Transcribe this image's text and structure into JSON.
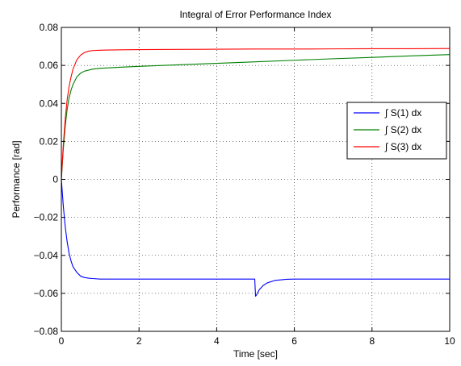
{
  "chart_data": {
    "type": "line",
    "title": "Integral of Error Performance Index",
    "xlabel": "Time [sec]",
    "ylabel": "Performance [rad]",
    "xlim": [
      0,
      10
    ],
    "ylim": [
      -0.08,
      0.08
    ],
    "x_ticks": [
      0,
      2,
      4,
      6,
      8,
      10
    ],
    "y_ticks": [
      -0.08,
      -0.06,
      -0.04,
      -0.02,
      0,
      0.02,
      0.04,
      0.06,
      0.08
    ],
    "x_tick_labels": [
      "0",
      "2",
      "4",
      "6",
      "8",
      "10"
    ],
    "y_tick_labels": [
      "−0.08",
      "−0.06",
      "−0.04",
      "−0.02",
      "0",
      "0.02",
      "0.04",
      "0.06",
      "0.08"
    ],
    "grid": true,
    "legend_position": "right",
    "series": [
      {
        "name": "∫ S(1) dx",
        "color": "#0000ff",
        "x": [
          0,
          0.05,
          0.1,
          0.15,
          0.2,
          0.25,
          0.3,
          0.4,
          0.5,
          0.6,
          0.7,
          0.8,
          1.0,
          1.2,
          1.5,
          2.0,
          3.0,
          4.0,
          4.98,
          5.0,
          5.02,
          5.1,
          5.2,
          5.3,
          5.5,
          5.8,
          6.0,
          7.0,
          8.0,
          9.0,
          10.0
        ],
        "y": [
          0,
          -0.014,
          -0.025,
          -0.033,
          -0.039,
          -0.043,
          -0.046,
          -0.049,
          -0.051,
          -0.0517,
          -0.052,
          -0.0522,
          -0.0525,
          -0.0525,
          -0.0525,
          -0.0525,
          -0.0525,
          -0.0525,
          -0.0525,
          -0.0615,
          -0.061,
          -0.058,
          -0.0558,
          -0.0545,
          -0.0532,
          -0.0526,
          -0.0525,
          -0.0525,
          -0.0525,
          -0.0525,
          -0.0525
        ]
      },
      {
        "name": "∫ S(2) dx",
        "color": "#008000",
        "x": [
          0,
          0.05,
          0.1,
          0.15,
          0.2,
          0.25,
          0.3,
          0.4,
          0.5,
          0.6,
          0.8,
          1.0,
          1.5,
          2.0,
          3.0,
          4.0,
          5.0,
          6.0,
          7.0,
          8.0,
          9.0,
          10.0
        ],
        "y": [
          0,
          0.016,
          0.028,
          0.037,
          0.043,
          0.047,
          0.05,
          0.054,
          0.056,
          0.057,
          0.058,
          0.0585,
          0.059,
          0.0595,
          0.0603,
          0.0611,
          0.0619,
          0.0627,
          0.0635,
          0.0642,
          0.065,
          0.0657
        ]
      },
      {
        "name": "∫ S(3) dx",
        "color": "#ff0000",
        "x": [
          0,
          0.05,
          0.1,
          0.15,
          0.2,
          0.25,
          0.3,
          0.4,
          0.5,
          0.6,
          0.7,
          0.8,
          1.0,
          1.5,
          2.0,
          3.0,
          4.0,
          5.0,
          6.0,
          7.0,
          8.0,
          9.0,
          10.0
        ],
        "y": [
          0,
          0.018,
          0.032,
          0.042,
          0.049,
          0.054,
          0.058,
          0.063,
          0.0655,
          0.0668,
          0.0675,
          0.0678,
          0.068,
          0.0682,
          0.0683,
          0.0684,
          0.0685,
          0.0686,
          0.0686,
          0.0687,
          0.0688,
          0.0688,
          0.0689
        ]
      }
    ]
  }
}
